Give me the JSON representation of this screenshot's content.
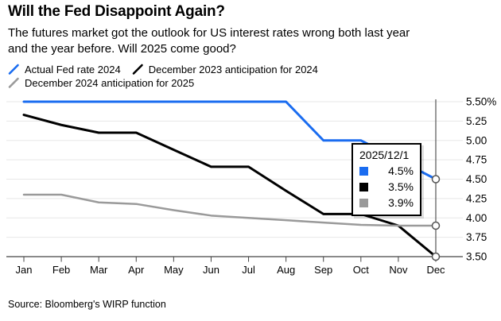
{
  "header": {
    "title": "Will the Fed Disappoint Again?",
    "subtitle_line1": "The futures market got the outlook for US interest rates wrong both last year",
    "subtitle_line2": "and the year before. Will 2025 come good?"
  },
  "legend": {
    "items": [
      {
        "label": "Actual Fed rate 2024",
        "color": "#1a6cf0"
      },
      {
        "label": "December 2023 anticipation for 2024",
        "color": "#000000"
      },
      {
        "label": "December 2024 anticipation for 2025",
        "color": "#9a9a9a"
      }
    ]
  },
  "tooltip": {
    "date": "2025/12/1",
    "rows": [
      {
        "series": "Actual Fed rate 2024",
        "color": "#1a6cf0",
        "value": "4.5%"
      },
      {
        "series": "December 2023 anticipation for 2024",
        "color": "#000000",
        "value": "3.5%"
      },
      {
        "series": "December 2024 anticipation for 2025",
        "color": "#9a9a9a",
        "value": "3.9%"
      }
    ]
  },
  "source": "Source: Bloomberg's WIRP function",
  "chart_data": {
    "type": "line",
    "title": "Will the Fed Disappoint Again?",
    "categories": [
      "Jan",
      "Feb",
      "Mar",
      "Apr",
      "May",
      "Jun",
      "Jul",
      "Aug",
      "Sep",
      "Oct",
      "Nov",
      "Dec"
    ],
    "ylim": [
      3.5,
      5.5
    ],
    "grid": true,
    "legend_position": "top",
    "cursor_at_category": "Dec",
    "yticks": [
      {
        "value": 5.5,
        "label": "5.50%"
      },
      {
        "value": 5.25,
        "label": "5.25"
      },
      {
        "value": 5.0,
        "label": "5.00"
      },
      {
        "value": 4.75,
        "label": "4.75"
      },
      {
        "value": 4.5,
        "label": "4.50"
      },
      {
        "value": 4.25,
        "label": "4.25"
      },
      {
        "value": 4.0,
        "label": "4.00"
      },
      {
        "value": 3.75,
        "label": "3.75"
      },
      {
        "value": 3.5,
        "label": "3.50"
      }
    ],
    "series": [
      {
        "name": "Actual Fed rate 2024",
        "color": "#1a6cf0",
        "stroke_width": 3,
        "values": [
          5.5,
          5.5,
          5.5,
          5.5,
          5.5,
          5.5,
          5.5,
          5.5,
          5.0,
          5.0,
          4.75,
          4.5
        ]
      },
      {
        "name": "December 2023 anticipation for 2024",
        "color": "#000000",
        "stroke_width": 3,
        "values": [
          5.33,
          5.2,
          5.1,
          5.1,
          4.88,
          4.66,
          4.66,
          4.35,
          4.05,
          4.05,
          3.9,
          3.5
        ]
      },
      {
        "name": "December 2024 anticipation for 2025",
        "color": "#9a9a9a",
        "stroke_width": 2.5,
        "values": [
          4.3,
          4.3,
          4.2,
          4.18,
          4.1,
          4.03,
          4.0,
          3.97,
          3.94,
          3.91,
          3.9,
          3.9
        ]
      }
    ],
    "end_markers": {
      "shape": "circle",
      "fill": "#ffffff",
      "stroke": "#555555"
    }
  },
  "layout_colors": {
    "grid": "#e7e7e7",
    "axis": "#444444",
    "cursor_line": "#555555"
  }
}
